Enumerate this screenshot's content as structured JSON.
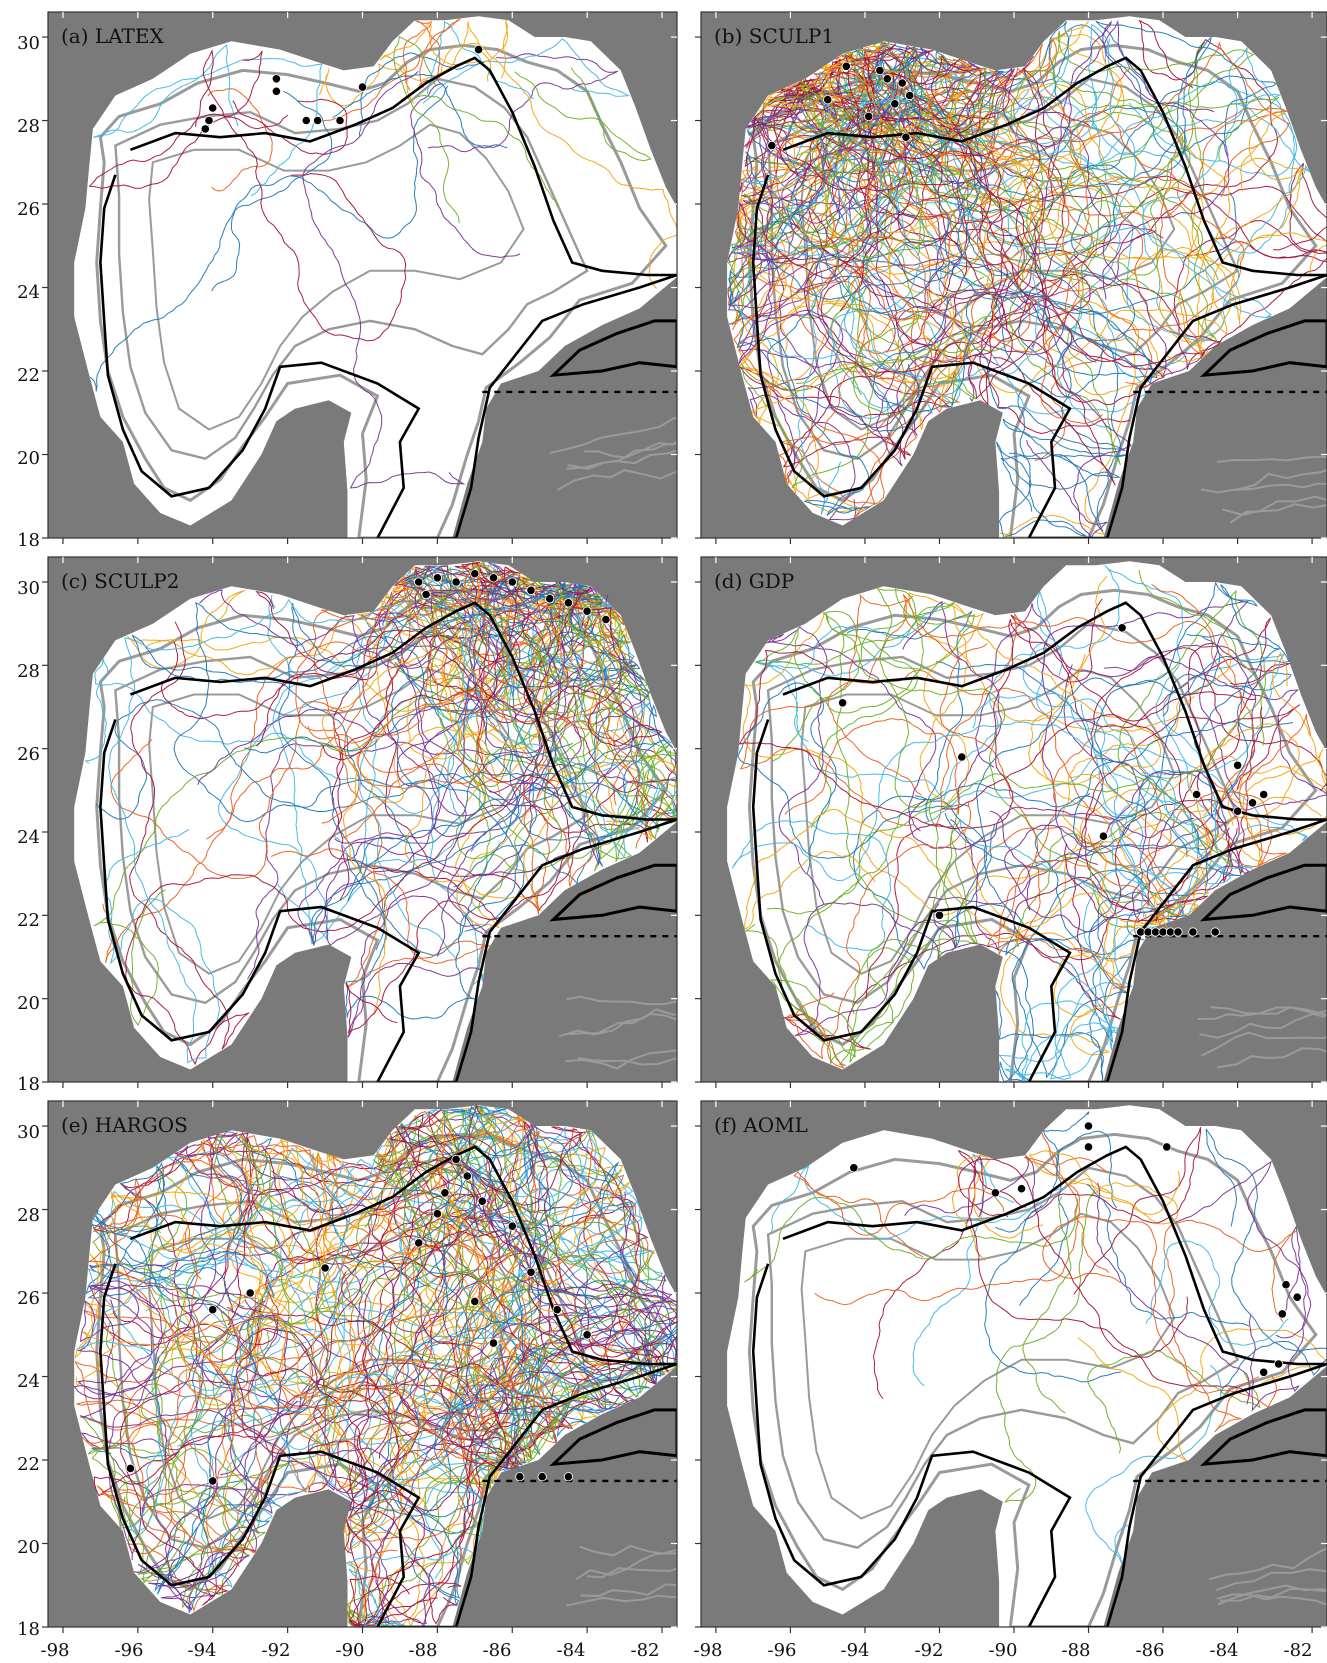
{
  "figure": {
    "x_ticks": [
      "-98",
      "-96",
      "-94",
      "-92",
      "-90",
      "-88",
      "-86",
      "-84",
      "-82"
    ],
    "y_ticks": [
      "30",
      "28",
      "26",
      "24",
      "22",
      "20",
      "18"
    ]
  },
  "colors": {
    "land": "#7a7a7a",
    "shelf": "#ffffff",
    "isobath": "#9a9a9a",
    "lc_contour": "#000000",
    "traj_palette": [
      "#1f77b4",
      "#e8601c",
      "#f4a30b",
      "#7b2f96",
      "#6ab023",
      "#3fb6e6",
      "#a4123f"
    ]
  },
  "map_data": {
    "type": "trajectory-map",
    "extent": {
      "lon": [
        -98.4,
        -81.6
      ],
      "lat": [
        18,
        30.6
      ]
    },
    "panels": [
      {
        "id": "a",
        "title": "(a) LATEX",
        "density": 0.9,
        "tracks": 22,
        "sources": [
          [
            -94,
            28.3
          ],
          [
            -91.5,
            28.3
          ],
          [
            -88.5,
            28.8
          ],
          [
            -86.5,
            29.5
          ]
        ],
        "deploy_points": [
          [
            -94.2,
            27.8
          ],
          [
            -94.1,
            28.0
          ],
          [
            -94.0,
            28.3
          ],
          [
            -92.3,
            29.0
          ],
          [
            -92.3,
            28.7
          ],
          [
            -91.5,
            28.0
          ],
          [
            -91.2,
            28.0
          ],
          [
            -90.6,
            28.0
          ],
          [
            -90.0,
            28.8
          ],
          [
            -86.9,
            29.7
          ]
        ]
      },
      {
        "id": "b",
        "title": "(b) SCULP1",
        "density": 3.0,
        "tracks": 120,
        "sources": [
          [
            -93.5,
            28.8
          ],
          [
            -94.5,
            27.5
          ],
          [
            -92.5,
            28.2
          ]
        ],
        "deploy_points": [
          [
            -93.6,
            29.2
          ],
          [
            -93.4,
            29.0
          ],
          [
            -93.0,
            28.9
          ],
          [
            -92.8,
            28.6
          ],
          [
            -93.2,
            28.4
          ],
          [
            -94.5,
            29.3
          ],
          [
            -95.0,
            28.5
          ],
          [
            -96.5,
            27.4
          ],
          [
            -92.9,
            27.6
          ],
          [
            -93.9,
            28.1
          ]
        ]
      },
      {
        "id": "c",
        "title": "(c) SCULP2",
        "density": 2.4,
        "tracks": 110,
        "sources": [
          [
            -88.0,
            29.8
          ],
          [
            -86.5,
            29.9
          ],
          [
            -85.0,
            29.3
          ],
          [
            -84.0,
            29.3
          ]
        ],
        "deploy_points": [
          [
            -88.5,
            30.0
          ],
          [
            -88.0,
            30.1
          ],
          [
            -87.5,
            30.0
          ],
          [
            -87.0,
            30.2
          ],
          [
            -86.5,
            30.1
          ],
          [
            -86.0,
            30.0
          ],
          [
            -85.5,
            29.8
          ],
          [
            -85.0,
            29.6
          ],
          [
            -84.5,
            29.5
          ],
          [
            -84.0,
            29.3
          ],
          [
            -83.5,
            29.1
          ],
          [
            -88.3,
            29.7
          ]
        ]
      },
      {
        "id": "d",
        "title": "(d) GDP",
        "density": 2.0,
        "tracks": 80,
        "sources": [
          [
            -86.0,
            22.0
          ],
          [
            -84.5,
            24.5
          ],
          [
            -92.0,
            24.5
          ]
        ],
        "deploy_points": [
          [
            -86.6,
            21.6
          ],
          [
            -86.4,
            21.6
          ],
          [
            -86.2,
            21.6
          ],
          [
            -86.0,
            21.6
          ],
          [
            -85.8,
            21.6
          ],
          [
            -85.6,
            21.6
          ],
          [
            -85.2,
            21.6
          ],
          [
            -84.6,
            21.6
          ],
          [
            -84.0,
            24.5
          ],
          [
            -83.6,
            24.7
          ],
          [
            -83.3,
            24.9
          ],
          [
            -94.6,
            27.1
          ],
          [
            -91.4,
            25.8
          ],
          [
            -92.0,
            22.0
          ],
          [
            -87.6,
            23.9
          ],
          [
            -87.1,
            28.9
          ],
          [
            -85.1,
            24.9
          ],
          [
            -84.0,
            25.6
          ]
        ]
      },
      {
        "id": "e",
        "title": "(e) HARGOS",
        "density": 3.2,
        "tracks": 150,
        "sources": [
          [
            -87.0,
            28.0
          ],
          [
            -86.0,
            24.5
          ],
          [
            -93.0,
            25.5
          ],
          [
            -86.0,
            22.0
          ]
        ],
        "deploy_points": [
          [
            -87.5,
            29.2
          ],
          [
            -87.2,
            28.8
          ],
          [
            -87.8,
            28.4
          ],
          [
            -86.8,
            28.2
          ],
          [
            -88.0,
            27.9
          ],
          [
            -86.0,
            27.6
          ],
          [
            -85.5,
            26.5
          ],
          [
            -84.8,
            25.6
          ],
          [
            -84.0,
            25.0
          ],
          [
            -86.5,
            24.8
          ],
          [
            -87.0,
            25.8
          ],
          [
            -88.5,
            27.2
          ],
          [
            -93.0,
            26.0
          ],
          [
            -94.0,
            25.6
          ],
          [
            -91.0,
            26.6
          ],
          [
            -96.2,
            21.8
          ],
          [
            -94.0,
            21.5
          ],
          [
            -84.5,
            21.6
          ],
          [
            -85.2,
            21.6
          ],
          [
            -85.8,
            21.6
          ]
        ]
      },
      {
        "id": "f",
        "title": "(f) AOML",
        "density": 0.7,
        "tracks": 30,
        "sources": [
          [
            -83.0,
            25.0
          ],
          [
            -84.0,
            24.0
          ],
          [
            -88.0,
            28.5
          ],
          [
            -90.0,
            28.0
          ]
        ],
        "deploy_points": [
          [
            -94.3,
            29.0
          ],
          [
            -90.5,
            28.4
          ],
          [
            -89.8,
            28.5
          ],
          [
            -88.0,
            30.0
          ],
          [
            -88.0,
            29.5
          ],
          [
            -85.9,
            29.5
          ],
          [
            -82.7,
            26.2
          ],
          [
            -82.4,
            25.9
          ],
          [
            -82.8,
            25.5
          ],
          [
            -82.9,
            24.3
          ],
          [
            -83.3,
            24.1
          ]
        ]
      }
    ]
  }
}
